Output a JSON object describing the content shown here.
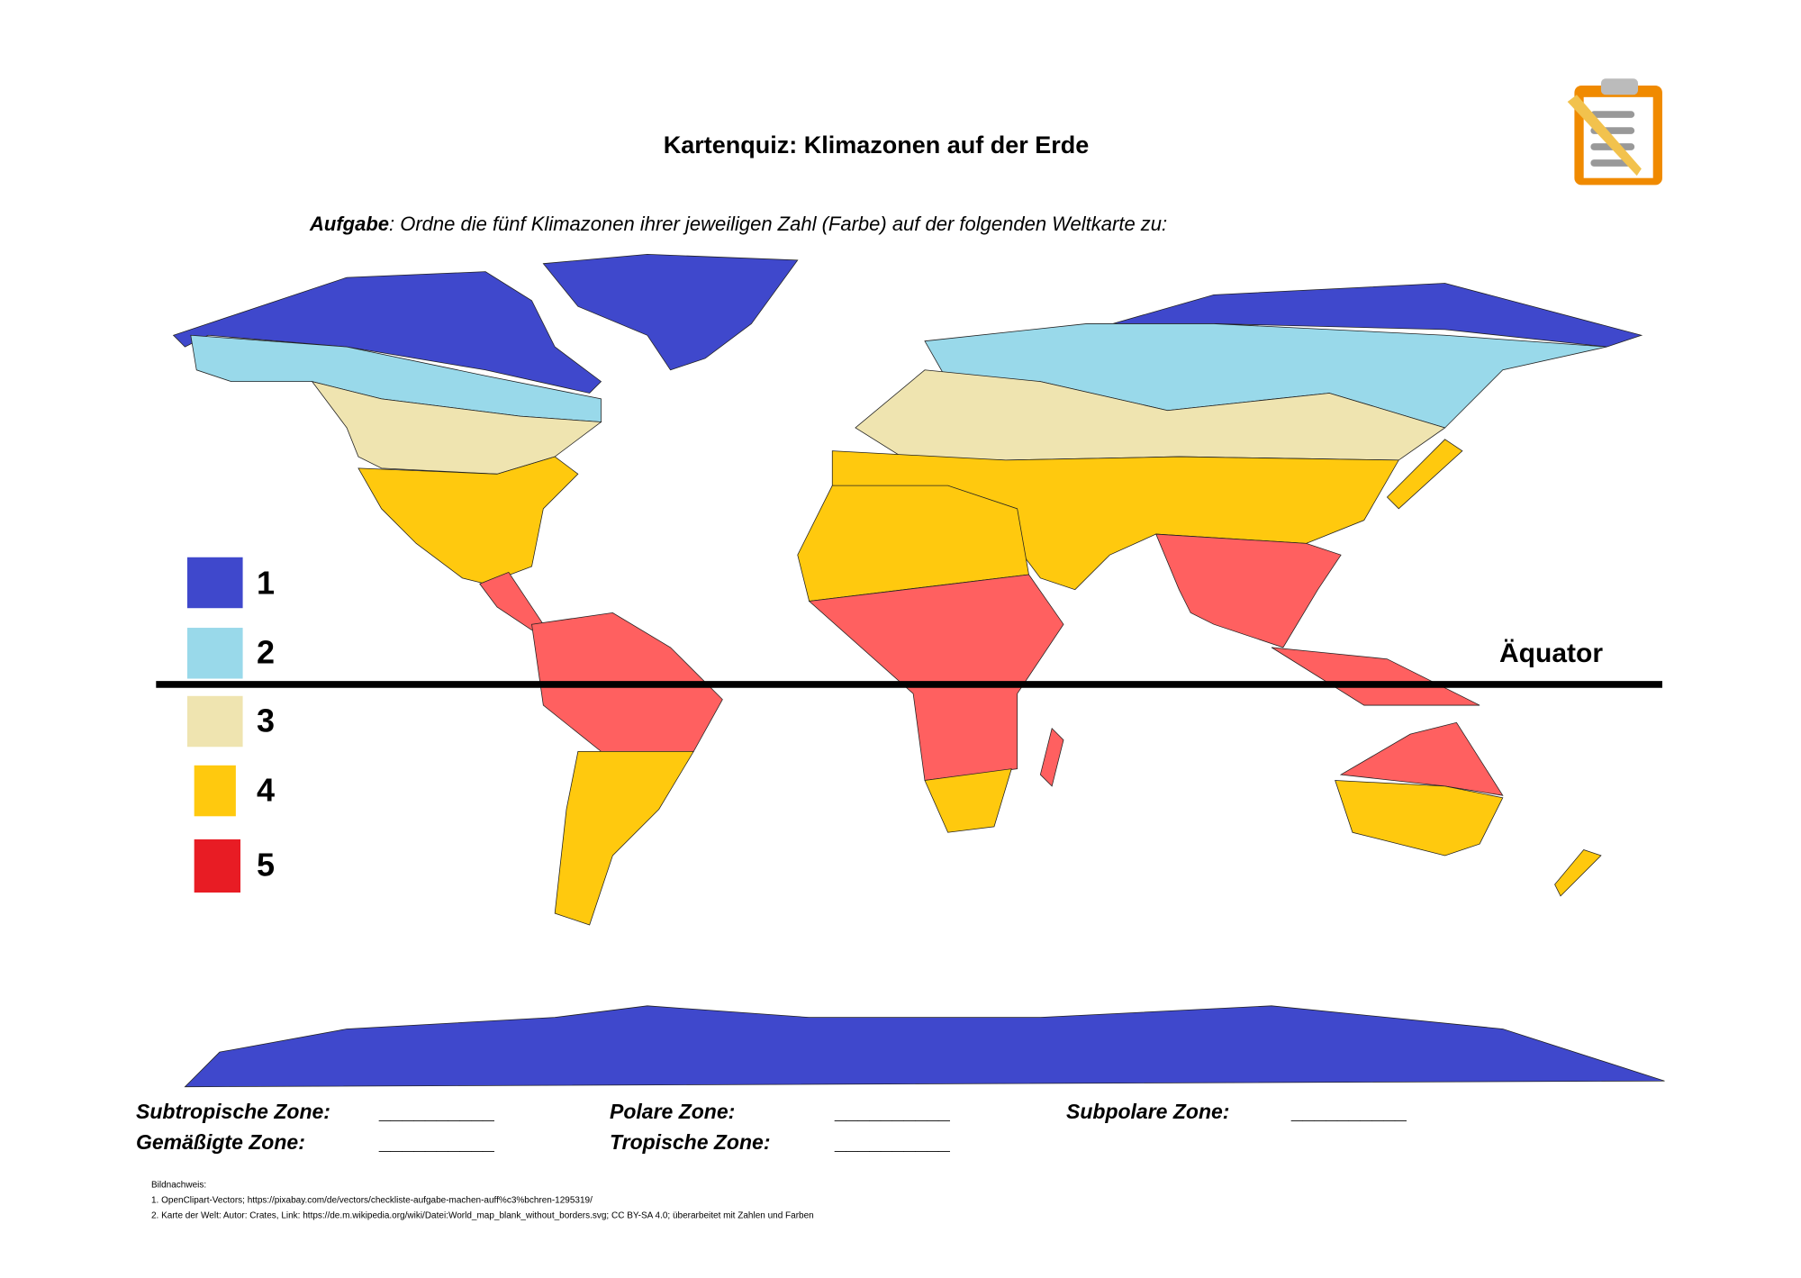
{
  "header": {
    "title": "Kartenquiz: Klimazonen auf der Erde"
  },
  "task": {
    "label": "Aufgabe",
    "text": ": Ordne die fünf Klimazonen ihrer jeweiligen Zahl (Farbe) auf der folgenden Weltkarte zu:"
  },
  "legend": [
    "1",
    "2",
    "3",
    "4",
    "5"
  ],
  "map": {
    "equator_label": "Äquator"
  },
  "fields": [
    {
      "label": "Subtropische Zone:",
      "blank": "__________"
    },
    {
      "label": "Polare Zone:",
      "blank": "__________"
    },
    {
      "label": "Subpolare Zone:",
      "blank": "__________"
    },
    {
      "label": "Gemäßigte Zone:",
      "blank": "__________"
    },
    {
      "label": "Tropische Zone:",
      "blank": "__________"
    }
  ],
  "credits": [
    "Bildnachweis:",
    "1. OpenClipart-Vectors; https://pixabay.com/de/vectors/checkliste-aufgabe-machen-auff%c3%bchren-1295319/",
    "2. Karte der Welt: Autor: Crates, Link: https://de.m.wikipedia.org/wiki/Datei:World_map_blank_without_borders.svg; CC BY-SA 4.0; überarbeitet mit Zahlen und Farben"
  ]
}
